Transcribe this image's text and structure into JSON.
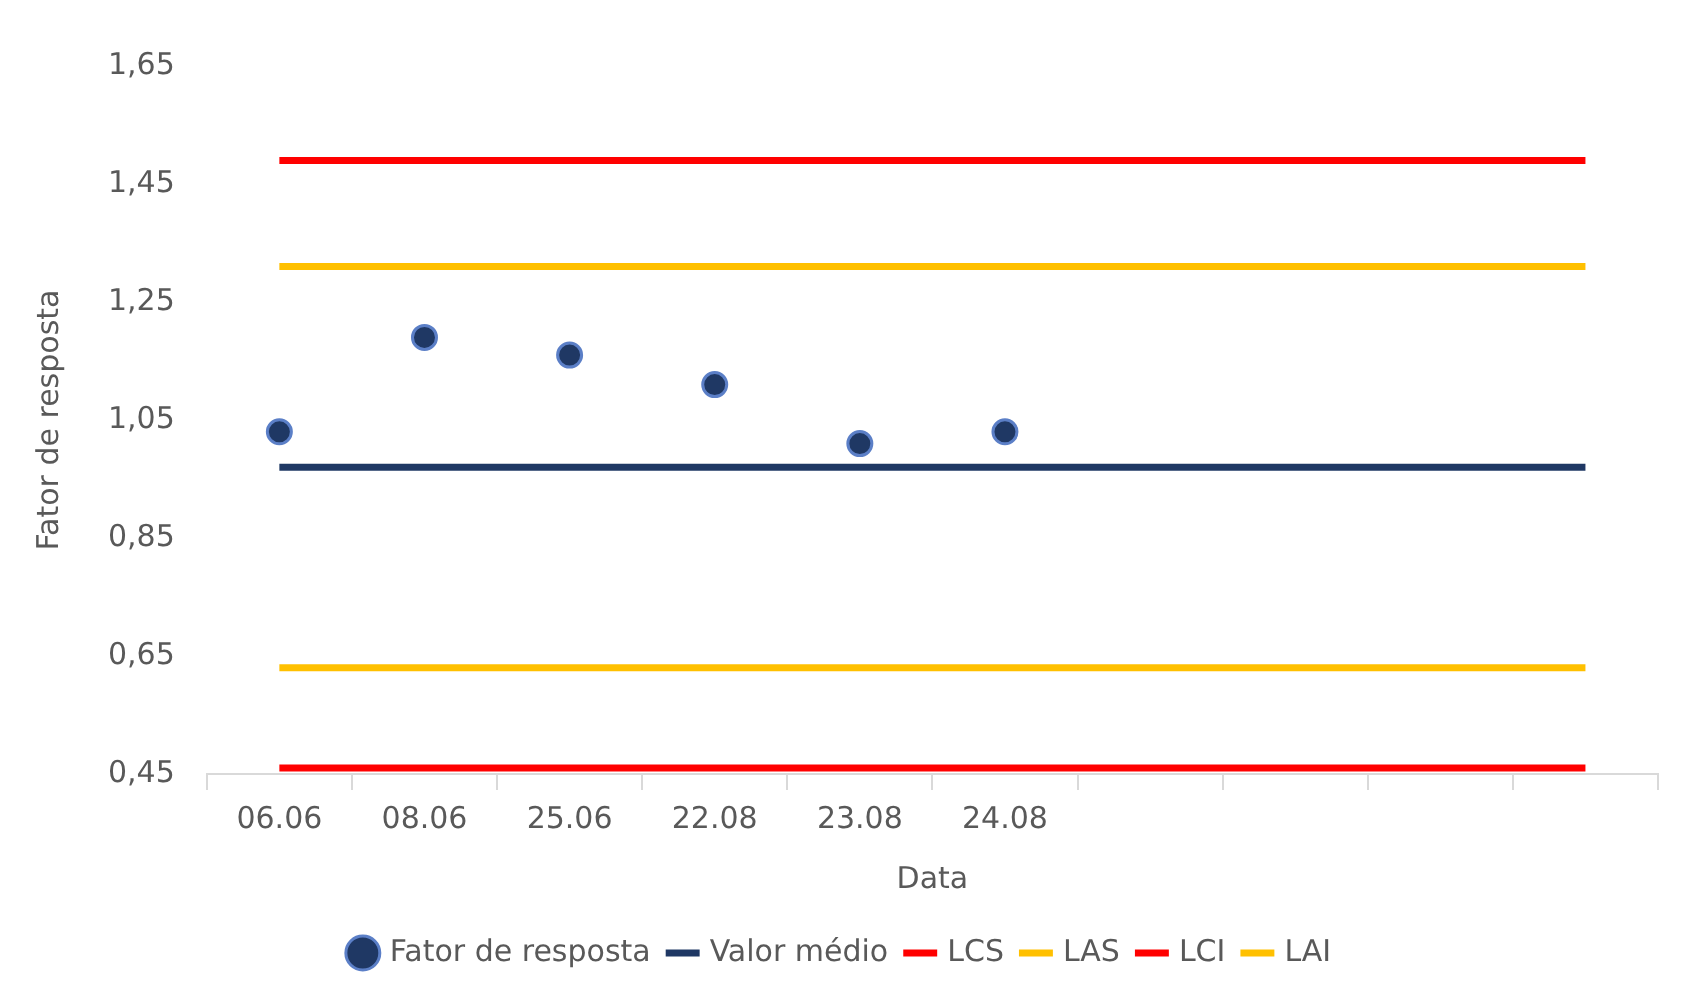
{
  "chart_data": {
    "type": "line",
    "xlabel": "Data",
    "ylabel": "Fator de resposta",
    "categories": [
      "06.06",
      "08.06",
      "25.06",
      "22.08",
      "23.08",
      "24.08",
      null,
      null,
      null,
      null
    ],
    "series": [
      {
        "name": "Fator de resposta",
        "type": "scatter",
        "marker": "circle",
        "color": "#1f3864",
        "values": [
          1.03,
          1.19,
          1.16,
          1.11,
          1.01,
          1.03,
          null,
          null,
          null,
          null
        ]
      },
      {
        "name": "Valor médio",
        "color": "#1f3864",
        "values": [
          0.97,
          0.97,
          0.97,
          0.97,
          0.97,
          0.97,
          0.97,
          0.97,
          0.97,
          0.97
        ]
      },
      {
        "name": "LCS",
        "color": "#ff0000",
        "values": [
          1.49,
          1.49,
          1.49,
          1.49,
          1.49,
          1.49,
          1.49,
          1.49,
          1.49,
          1.49
        ]
      },
      {
        "name": "LAS",
        "color": "#ffc000",
        "values": [
          1.31,
          1.31,
          1.31,
          1.31,
          1.31,
          1.31,
          1.31,
          1.31,
          1.31,
          1.31
        ]
      },
      {
        "name": "LCI",
        "color": "#ff0000",
        "values": [
          0.46,
          0.46,
          0.46,
          0.46,
          0.46,
          0.46,
          0.46,
          0.46,
          0.46,
          0.46
        ]
      },
      {
        "name": "LAI",
        "color": "#ffc000",
        "values": [
          0.63,
          0.63,
          0.63,
          0.63,
          0.63,
          0.63,
          0.63,
          0.63,
          0.63,
          0.63
        ]
      }
    ],
    "ylim": [
      0.45,
      1.65
    ],
    "yticks": [
      {
        "value": 0.45,
        "label": "0,45"
      },
      {
        "value": 0.65,
        "label": "0,65"
      },
      {
        "value": 0.85,
        "label": "0,85"
      },
      {
        "value": 1.05,
        "label": "1,05"
      },
      {
        "value": 1.25,
        "label": "1,25"
      },
      {
        "value": 1.45,
        "label": "1,45"
      },
      {
        "value": 1.65,
        "label": "1,65"
      }
    ],
    "marker": "none",
    "legend": "bottom",
    "grid": false
  }
}
